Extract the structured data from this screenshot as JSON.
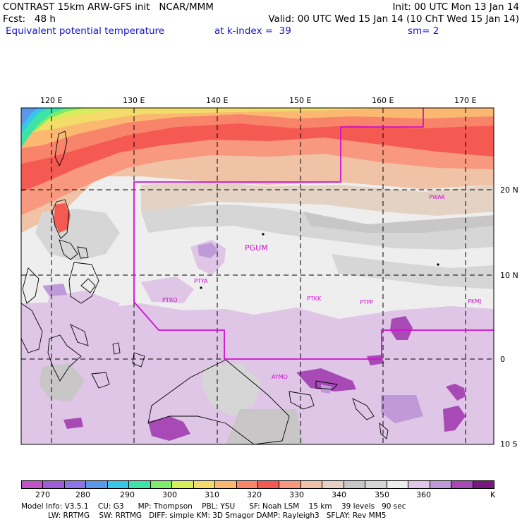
{
  "header": {
    "line1_left": "CONTRAST 15km ARW-GFS init   NCAR/MMM",
    "line1_right": "Init: 00 UTC Mon 13 Jan 14",
    "line2_left": "Fcst:   48 h",
    "line2_right": "Valid: 00 UTC Wed 15 Jan 14 (10 ChT Wed 15 Jan 14)",
    "line3_field": "Equivalent potential temperature",
    "line3_level": "at k-index =  39",
    "line3_smooth": "sm= 2"
  },
  "map": {
    "lon_labels": [
      "120 E",
      "130 E",
      "140 E",
      "150 E",
      "160 E",
      "170 E"
    ],
    "lat_labels": [
      "20 N",
      "10 N",
      "0",
      "10 S"
    ],
    "stations": [
      {
        "id": "PWAK",
        "big": false
      },
      {
        "id": "PGUM",
        "big": true
      },
      {
        "id": "PTYA",
        "big": false
      },
      {
        "id": "PTRO",
        "big": false
      },
      {
        "id": "PTKK",
        "big": false
      },
      {
        "id": "PTPP",
        "big": false
      },
      {
        "id": "PKMJ",
        "big": false
      },
      {
        "id": "AYMO",
        "big": false
      }
    ]
  },
  "colorbar": {
    "colors": [
      "#c252c8",
      "#a05ed4",
      "#8a76e6",
      "#5a98ec",
      "#36c8e6",
      "#3ee3a8",
      "#7cec6a",
      "#d7ee5c",
      "#f4dc6a",
      "#fab870",
      "#f8846a",
      "#f45a52",
      "#f8987e",
      "#f0c2a6",
      "#e4d3c4",
      "#c8c6c6",
      "#d6d6d6",
      "#eeeeee",
      "#dfc6e6",
      "#c09ad8",
      "#a84ab6",
      "#76187e"
    ],
    "labels": [
      "270",
      "280",
      "290",
      "300",
      "310",
      "320",
      "330",
      "340",
      "350",
      "360",
      "K"
    ]
  },
  "model_info": {
    "line1": "Model Info: V3.5.1    CU: G3      MP: Thompson    PBL: YSU      SF: Noah LSM    15 km    39 levels   90 sec",
    "line2": "LW: RRTMG    SW: RRTMG   DIFF: simple KM: 3D Smagor DAMP: Rayleigh3   SFLAY: Rev MM5"
  }
}
